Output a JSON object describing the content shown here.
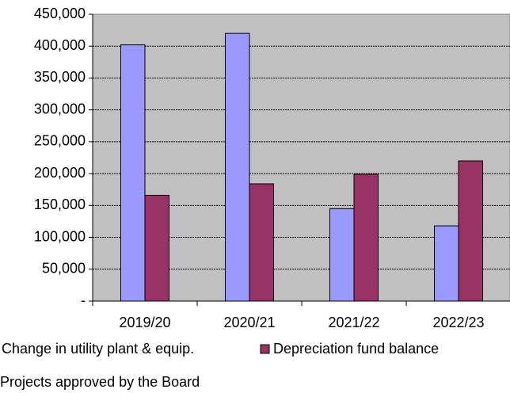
{
  "chart_data": {
    "type": "bar",
    "categories": [
      "2019/20",
      "2020/21",
      "2021/22",
      "2022/23"
    ],
    "series": [
      {
        "name": "Change in utility plant & equip.",
        "color": "#9999ff",
        "values": [
          402000,
          420000,
          145000,
          118000
        ]
      },
      {
        "name": "Depreciation fund balance",
        "color": "#993366",
        "values": [
          166000,
          184000,
          199000,
          220000
        ]
      }
    ],
    "ylim": [
      0,
      450000
    ],
    "yticks": [
      {
        "value": 0,
        "label": "-"
      },
      {
        "value": 50000,
        "label": "50,000"
      },
      {
        "value": 100000,
        "label": "100,000"
      },
      {
        "value": 150000,
        "label": "150,000"
      },
      {
        "value": 200000,
        "label": "200,000"
      },
      {
        "value": 250000,
        "label": "250,000"
      },
      {
        "value": 300000,
        "label": "300,000"
      },
      {
        "value": 350000,
        "label": "350,000"
      },
      {
        "value": 400000,
        "label": "400,000"
      },
      {
        "value": 450000,
        "label": "450,000"
      }
    ],
    "grid": true,
    "note": "Projects approved by the Board"
  }
}
